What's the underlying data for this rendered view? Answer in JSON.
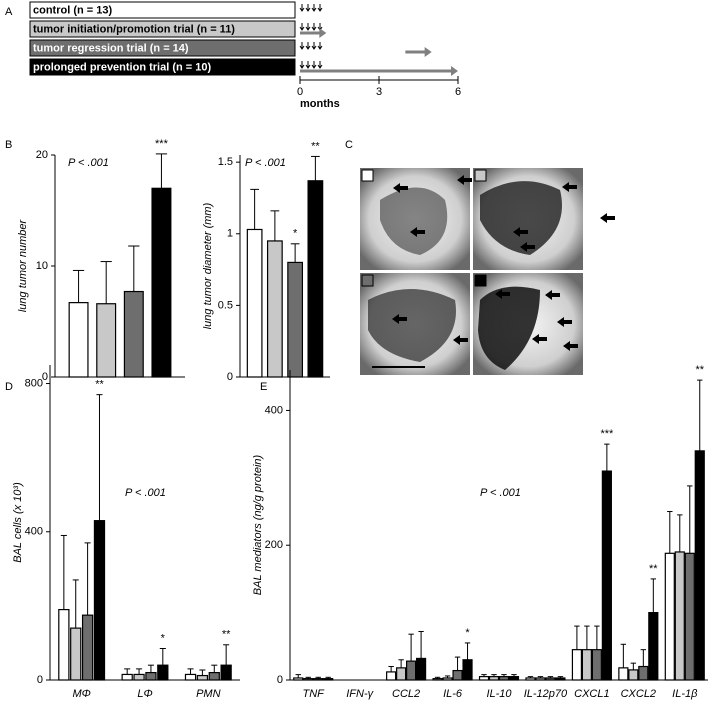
{
  "panel_labels": [
    "A",
    "B",
    "C",
    "D",
    "E"
  ],
  "timeline": {
    "xlim": [
      0,
      6
    ],
    "xticks": [
      0,
      3,
      6
    ],
    "xlabel": "months",
    "arrows": [
      null,
      [
        0,
        1
      ],
      [
        4,
        5
      ],
      [
        0,
        6
      ]
    ]
  },
  "chart_data": [
    {
      "type": "bar",
      "ylabel": "lung tumor number",
      "ylim": [
        0,
        20
      ],
      "yticks": [
        0,
        10,
        20
      ],
      "categories": [
        null
      ],
      "series": [
        {
          "name": "control (n = 13)",
          "color": "#ffffff",
          "values": [
            6.7
          ],
          "errors": [
            2.9
          ]
        },
        {
          "name": "tumor initiation/promotion trial (n = 11)",
          "color": "#c8c8c8",
          "values": [
            6.6
          ],
          "errors": [
            3.8
          ]
        },
        {
          "name": "tumor regression trial (n = 14)",
          "color": "#6e6e6e",
          "values": [
            7.7
          ],
          "errors": [
            4.1
          ]
        },
        {
          "name": "prolonged prevention trial (n = 10)",
          "color": "#000000",
          "values": [
            17
          ],
          "errors": [
            3.1
          ]
        }
      ],
      "annotations": [
        {
          "text": "P < .001"
        },
        {
          "text": "***",
          "category": null,
          "series": "prolonged prevention trial (n = 10)"
        }
      ]
    },
    {
      "type": "bar",
      "ylabel": "lung tumor diameter (mm)",
      "ylim": [
        0,
        1.55
      ],
      "yticks": [
        0,
        0.5,
        1,
        1.5
      ],
      "categories": [
        null
      ],
      "series": [
        {
          "color": "#ffffff",
          "values": [
            1.03
          ],
          "errors": [
            0.28
          ]
        },
        {
          "color": "#c8c8c8",
          "values": [
            0.95
          ],
          "errors": [
            0.21
          ]
        },
        {
          "color": "#6e6e6e",
          "values": [
            0.8
          ],
          "errors": [
            0.13
          ]
        },
        {
          "color": "#000000",
          "values": [
            1.37
          ],
          "errors": [
            0.17
          ]
        }
      ],
      "annotations": [
        {
          "text": "P < .001"
        },
        {
          "text": "*",
          "category": null,
          "series": 2
        },
        {
          "text": "**",
          "category": null,
          "series": 3
        }
      ]
    },
    {
      "type": "bar",
      "ylabel": "BAL cells (x 10³)",
      "ylim": [
        0,
        850
      ],
      "yticks": [
        0,
        400,
        800
      ],
      "categories": [
        "MΦ",
        "LΦ",
        "PMN"
      ],
      "series": [
        {
          "color": "#ffffff",
          "values": [
            190,
            15,
            15
          ],
          "errors": [
            200,
            15,
            15
          ]
        },
        {
          "color": "#c8c8c8",
          "values": [
            140,
            15,
            12
          ],
          "errors": [
            130,
            15,
            15
          ]
        },
        {
          "color": "#6e6e6e",
          "values": [
            175,
            20,
            20
          ],
          "errors": [
            195,
            20,
            20
          ]
        },
        {
          "color": "#000000",
          "values": [
            430,
            40,
            40
          ],
          "errors": [
            340,
            45,
            55
          ]
        }
      ],
      "annotations": [
        {
          "text": "P < .001"
        },
        {
          "text": "**",
          "category": "MΦ",
          "series": 3
        },
        {
          "text": "*",
          "category": "LΦ",
          "series": 3
        },
        {
          "text": "**",
          "category": "PMN",
          "series": 3
        }
      ]
    },
    {
      "type": "bar",
      "ylabel": "BAL mediators (ng/g protein)",
      "ylim": [
        0,
        460
      ],
      "yticks": [
        0,
        200,
        400
      ],
      "categories": [
        "TNF",
        "IFN-γ",
        "CCL2",
        "IL-6",
        "IL-10",
        "IL-12p70",
        "CXCL1",
        "CXCL2",
        "IL-1β"
      ],
      "series": [
        {
          "color": "#ffffff",
          "values": [
            3,
            0,
            12,
            2,
            5,
            3,
            45,
            18,
            188
          ],
          "errors": [
            5,
            0,
            8,
            2,
            3,
            2,
            35,
            35,
            62
          ]
        },
        {
          "color": "#c8c8c8",
          "values": [
            2,
            0,
            18,
            3,
            5,
            3,
            45,
            15,
            190
          ],
          "errors": [
            2,
            0,
            12,
            3,
            3,
            2,
            35,
            10,
            55
          ]
        },
        {
          "color": "#6e6e6e",
          "values": [
            2,
            0,
            28,
            14,
            5,
            3,
            45,
            20,
            188
          ],
          "errors": [
            2,
            0,
            40,
            20,
            3,
            2,
            35,
            25,
            100
          ]
        },
        {
          "color": "#000000",
          "values": [
            2,
            0,
            32,
            30,
            5,
            3,
            310,
            100,
            340
          ],
          "errors": [
            2,
            0,
            40,
            25,
            3,
            2,
            40,
            50,
            105
          ]
        }
      ],
      "annotations": [
        {
          "text": "P < .001"
        },
        {
          "text": "*",
          "category": "IL-6",
          "series": 3
        },
        {
          "text": "***",
          "category": "CXCL1",
          "series": 3
        },
        {
          "text": "**",
          "category": "CXCL2",
          "series": 3
        },
        {
          "text": "**",
          "category": "IL-1β",
          "series": 3
        }
      ]
    }
  ]
}
